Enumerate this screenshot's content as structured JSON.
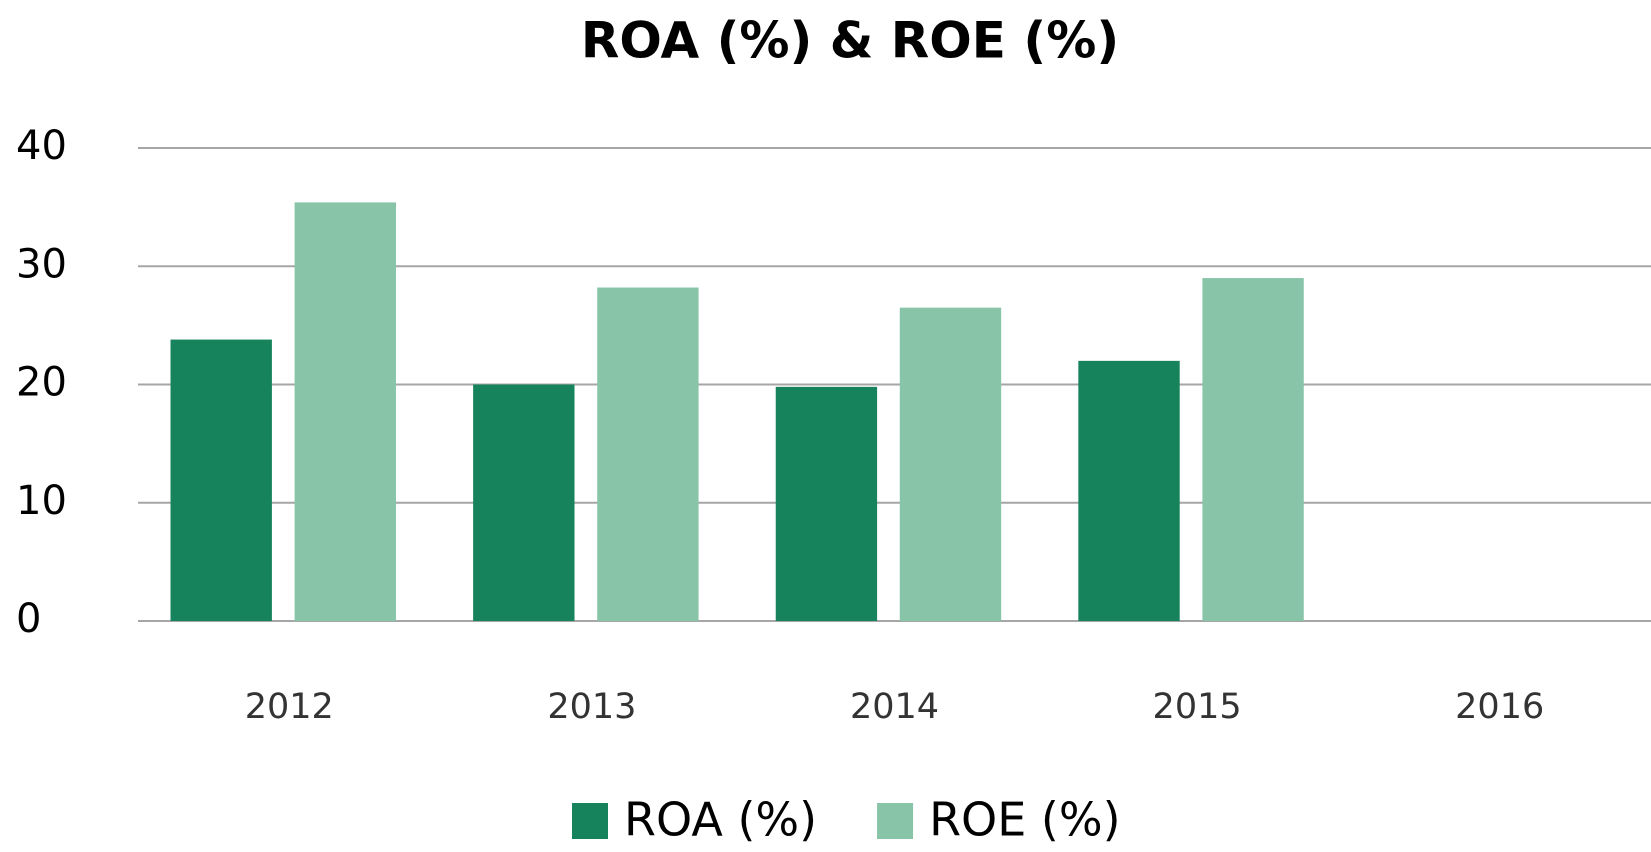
{
  "chart_data": {
    "type": "bar",
    "title": "ROA (%) & ROE (%)",
    "categories": [
      "2012",
      "2013",
      "2014",
      "2015",
      "2016"
    ],
    "series": [
      {
        "name": "ROA (%)",
        "color": "#16835d",
        "values": [
          23.8,
          20.0,
          19.8,
          22.0,
          null
        ]
      },
      {
        "name": "ROE (%)",
        "color": "#88c4a8",
        "values": [
          35.4,
          28.2,
          26.5,
          29.0,
          null
        ]
      }
    ],
    "ylim": [
      0,
      40
    ],
    "yticks": [
      0,
      10,
      20,
      30,
      40
    ],
    "grid": true,
    "legend": "bottom"
  }
}
